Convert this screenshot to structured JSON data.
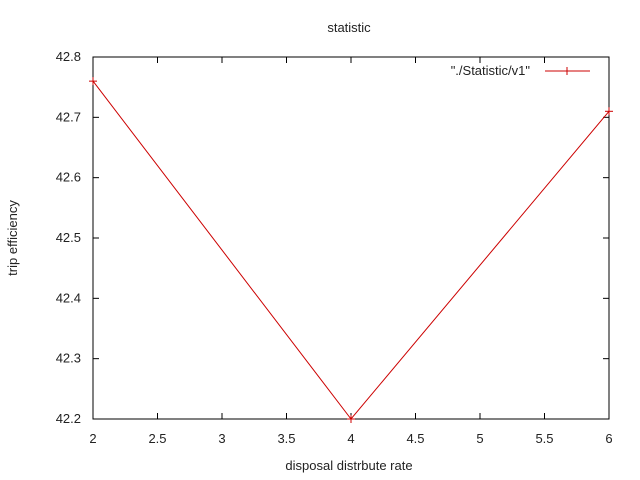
{
  "chart_data": {
    "type": "line",
    "title": "statistic",
    "xlabel": "disposal distrbute rate",
    "ylabel": "trip efficiency",
    "xlim": [
      2,
      6
    ],
    "ylim": [
      42.2,
      42.8
    ],
    "x_ticks": [
      "2",
      "2.5",
      "3",
      "3.5",
      "4",
      "4.5",
      "5",
      "5.5",
      "6"
    ],
    "y_ticks": [
      "42.2",
      "42.3",
      "42.4",
      "42.5",
      "42.6",
      "42.7",
      "42.8"
    ],
    "grid": false,
    "legend_position": "top-right",
    "series": [
      {
        "name": "\"./Statistic/v1\"",
        "color": "#cc0000",
        "marker": "plus",
        "x": [
          2,
          4,
          6
        ],
        "y": [
          42.76,
          42.2,
          42.71
        ]
      }
    ]
  }
}
